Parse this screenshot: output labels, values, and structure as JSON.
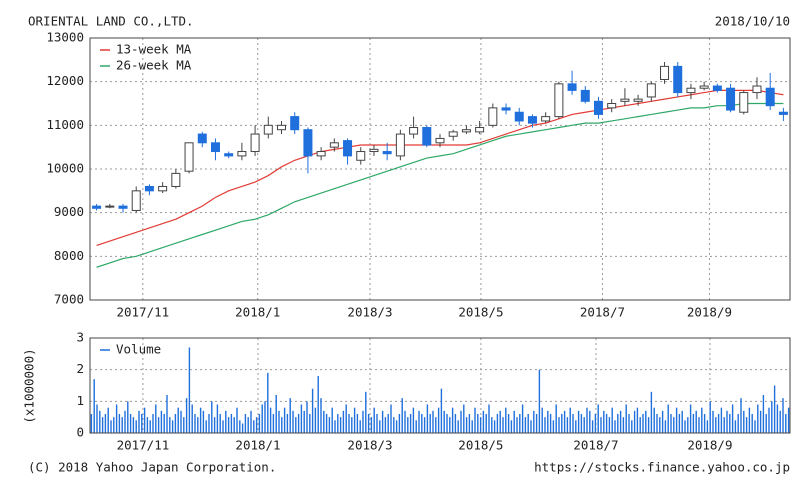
{
  "chart_data": [
    {
      "type": "candlestick",
      "title": "ORIENTAL LAND CO.,LTD.",
      "date": "2018/10/10",
      "categories": [
        null,
        null,
        null,
        null,
        null,
        null,
        null,
        null,
        null,
        null,
        null,
        null,
        null,
        null,
        null,
        null,
        null,
        null,
        null,
        null,
        null,
        null,
        null,
        null,
        null,
        null,
        null,
        null,
        null,
        null,
        null,
        null,
        null,
        null,
        null,
        null,
        null,
        null,
        null,
        null,
        null,
        null,
        null,
        null,
        null,
        null,
        null,
        null,
        null,
        null,
        null,
        null,
        null
      ],
      "open": [
        9150,
        9150,
        9150,
        9050,
        9600,
        9500,
        9600,
        9950,
        10800,
        10600,
        10350,
        10300,
        10400,
        10800,
        10900,
        11200,
        10900,
        10300,
        10500,
        10650,
        10200,
        10400,
        10400,
        10300,
        10800,
        10950,
        10600,
        10750,
        10850,
        10850,
        11000,
        11400,
        11300,
        11200,
        11100,
        11200,
        11950,
        11800,
        11550,
        11400,
        11550,
        11550,
        11650,
        12050,
        12350,
        11750,
        11850,
        11900,
        11850,
        11300,
        11750,
        11850,
        11300
      ],
      "high": [
        9200,
        9200,
        9200,
        9600,
        9650,
        9700,
        10000,
        10600,
        10850,
        10700,
        10400,
        10600,
        11000,
        11200,
        11100,
        11300,
        10950,
        10500,
        10700,
        10700,
        10500,
        10550,
        10600,
        10900,
        11200,
        11000,
        10800,
        10900,
        11000,
        11100,
        11500,
        11500,
        11400,
        11250,
        11300,
        12000,
        12250,
        11900,
        11650,
        11600,
        11850,
        11700,
        12000,
        12450,
        12450,
        11950,
        12000,
        11950,
        11950,
        11800,
        12100,
        12200,
        11400
      ],
      "low": [
        9050,
        9100,
        9000,
        9000,
        9400,
        9450,
        9550,
        9900,
        10500,
        10200,
        10250,
        10200,
        10300,
        10700,
        10800,
        10800,
        9900,
        10200,
        10400,
        10100,
        10100,
        10300,
        10200,
        10200,
        10700,
        10500,
        10500,
        10650,
        10800,
        10800,
        10950,
        11250,
        11000,
        10950,
        11050,
        11150,
        11700,
        11500,
        11150,
        11300,
        11450,
        11450,
        11550,
        11950,
        11650,
        11600,
        11800,
        11750,
        11300,
        11250,
        11600,
        11350,
        11100
      ],
      "close": [
        9100,
        9150,
        9100,
        9500,
        9500,
        9600,
        9900,
        10600,
        10600,
        10400,
        10300,
        10400,
        10800,
        11000,
        11000,
        10900,
        10300,
        10400,
        10600,
        10300,
        10400,
        10450,
        10350,
        10800,
        10950,
        10550,
        10700,
        10850,
        10900,
        10950,
        11400,
        11350,
        11100,
        11050,
        11200,
        11950,
        11800,
        11550,
        11250,
        11500,
        11600,
        11600,
        11950,
        12350,
        11750,
        11850,
        11900,
        11800,
        11350,
        11750,
        11900,
        11450,
        11250
      ],
      "up_color": "#ffffff",
      "down_color": "#1f6fdc",
      "series": [
        {
          "name": "13-week MA",
          "color": "#e23b35",
          "values": [
            8250,
            8350,
            8450,
            8550,
            8650,
            8750,
            8850,
            9000,
            9150,
            9350,
            9500,
            9600,
            9700,
            9850,
            10050,
            10200,
            10300,
            10400,
            10450,
            10500,
            10550,
            10550,
            10550,
            10550,
            10550,
            10550,
            10550,
            10550,
            10550,
            10600,
            10700,
            10800,
            10900,
            11000,
            11050,
            11150,
            11250,
            11300,
            11350,
            11400,
            11450,
            11500,
            11550,
            11600,
            11650,
            11700,
            11750,
            11800,
            11800,
            11800,
            11800,
            11750,
            11700
          ]
        },
        {
          "name": "26-week MA",
          "color": "#2ea868",
          "values": [
            7750,
            7850,
            7950,
            8000,
            8100,
            8200,
            8300,
            8400,
            8500,
            8600,
            8700,
            8800,
            8850,
            8950,
            9100,
            9250,
            9350,
            9450,
            9550,
            9650,
            9750,
            9850,
            9950,
            10050,
            10150,
            10250,
            10300,
            10350,
            10450,
            10550,
            10650,
            10750,
            10800,
            10850,
            10900,
            10950,
            11000,
            11050,
            11050,
            11100,
            11150,
            11200,
            11250,
            11300,
            11350,
            11400,
            11400,
            11450,
            11450,
            11500,
            11500,
            11500,
            11500
          ]
        }
      ],
      "ylim": [
        7000,
        13000
      ],
      "yticks": [
        7000,
        8000,
        9000,
        10000,
        11000,
        12000,
        13000
      ],
      "xticks": [
        {
          "value": 3.5,
          "label": "2017/11"
        },
        {
          "value": 12.2,
          "label": "2018/1"
        },
        {
          "value": 20.7,
          "label": "2018/3"
        },
        {
          "value": 29.1,
          "label": "2018/5"
        },
        {
          "value": 38.3,
          "label": "2018/7"
        },
        {
          "value": 46.4,
          "label": "2018/9"
        }
      ],
      "grid": true,
      "legend": "upper-left"
    },
    {
      "type": "bar",
      "y_label": "(x1000000)",
      "categories": [
        null,
        null,
        null,
        null,
        null,
        null,
        null,
        null,
        null,
        null,
        null,
        null,
        null,
        null,
        null,
        null,
        null,
        null,
        null,
        null,
        null,
        null,
        null,
        null,
        null,
        null,
        null,
        null,
        null,
        null,
        null,
        null,
        null,
        null,
        null,
        null,
        null,
        null,
        null,
        null,
        null,
        null,
        null,
        null,
        null,
        null,
        null,
        null,
        null,
        null,
        null,
        null,
        null,
        null,
        null,
        null,
        null,
        null,
        null,
        null,
        null,
        null,
        null,
        null,
        null,
        null,
        null,
        null,
        null,
        null,
        null,
        null,
        null,
        null,
        null,
        null,
        null,
        null,
        null,
        null,
        null,
        null,
        null,
        null,
        null,
        null,
        null,
        null,
        null,
        null,
        null,
        null,
        null,
        null,
        null,
        null,
        null,
        null,
        null,
        null,
        null,
        null,
        null,
        null,
        null,
        null,
        null,
        null,
        null,
        null,
        null,
        null,
        null,
        null,
        null,
        null,
        null,
        null,
        null,
        null,
        null,
        null,
        null,
        null,
        null,
        null,
        null,
        null,
        null,
        null,
        null,
        null,
        null,
        null,
        null,
        null,
        null,
        null,
        null,
        null,
        null,
        null,
        null,
        null,
        null,
        null,
        null,
        null,
        null,
        null,
        null,
        null,
        null,
        null,
        null,
        null,
        null,
        null,
        null,
        null,
        null,
        null,
        null,
        null,
        null,
        null,
        null,
        null,
        null,
        null,
        null,
        null,
        null,
        null,
        null,
        null,
        null,
        null,
        null,
        null,
        null,
        null,
        null,
        null,
        null,
        null,
        null,
        null,
        null,
        null,
        null,
        null,
        null,
        null,
        null,
        null,
        null,
        null,
        null,
        null,
        null,
        null,
        null,
        null,
        null,
        null,
        null,
        null,
        null,
        null,
        null,
        null,
        null,
        null,
        null,
        null,
        null,
        null,
        null,
        null,
        null,
        null,
        null,
        null,
        null,
        null,
        null,
        null,
        null,
        null,
        null,
        null,
        null,
        null,
        null,
        null,
        null,
        null,
        null,
        null,
        null,
        null,
        null,
        null,
        null,
        null,
        null,
        null,
        null,
        null
      ],
      "series": [
        {
          "name": "Volume",
          "color": "#1f6fdc",
          "values": [
            0.6,
            1.7,
            0.9,
            0.7,
            0.5,
            0.6,
            0.8,
            0.4,
            0.5,
            0.9,
            0.6,
            0.5,
            0.7,
            1.0,
            0.6,
            0.5,
            0.4,
            0.7,
            0.6,
            0.8,
            0.5,
            0.4,
            0.6,
            0.9,
            0.5,
            0.7,
            0.6,
            1.2,
            0.5,
            0.4,
            0.6,
            0.8,
            0.7,
            0.5,
            1.1,
            2.7,
            0.9,
            0.6,
            0.5,
            0.8,
            0.7,
            0.4,
            0.6,
            1.0,
            0.5,
            0.9,
            0.6,
            0.4,
            0.7,
            0.5,
            0.6,
            0.5,
            0.8,
            0.4,
            0.3,
            0.6,
            0.5,
            0.7,
            0.4,
            0.5,
            0.6,
            0.9,
            1.0,
            1.9,
            0.8,
            0.6,
            1.2,
            0.7,
            0.5,
            0.8,
            0.6,
            1.1,
            0.7,
            0.5,
            0.6,
            0.9,
            0.7,
            1.0,
            0.6,
            1.4,
            0.8,
            1.8,
            1.1,
            0.7,
            0.6,
            0.5,
            0.8,
            0.4,
            0.6,
            0.5,
            0.7,
            0.9,
            0.6,
            0.5,
            0.8,
            0.6,
            0.4,
            0.7,
            1.3,
            0.6,
            0.5,
            0.8,
            0.6,
            0.4,
            0.7,
            0.5,
            0.6,
            0.9,
            0.5,
            0.4,
            0.6,
            1.1,
            0.7,
            0.5,
            0.6,
            0.8,
            0.4,
            0.7,
            0.6,
            0.5,
            0.9,
            0.6,
            0.7,
            0.5,
            0.8,
            1.4,
            0.7,
            0.6,
            0.5,
            0.8,
            0.6,
            0.4,
            0.7,
            0.9,
            0.5,
            0.6,
            0.4,
            0.8,
            0.6,
            0.5,
            0.7,
            0.6,
            0.9,
            0.5,
            0.4,
            0.6,
            0.7,
            0.5,
            0.8,
            0.6,
            0.4,
            0.7,
            0.5,
            0.6,
            0.9,
            0.5,
            0.6,
            0.4,
            0.7,
            0.6,
            2.0,
            0.8,
            0.5,
            0.7,
            0.6,
            0.4,
            0.9,
            0.5,
            0.6,
            0.7,
            0.5,
            0.8,
            0.6,
            0.4,
            0.7,
            0.6,
            0.5,
            0.8,
            0.7,
            0.4,
            0.6,
            0.9,
            0.5,
            0.7,
            0.6,
            0.5,
            0.8,
            0.4,
            0.6,
            0.7,
            0.5,
            0.9,
            0.6,
            0.4,
            0.7,
            0.8,
            0.5,
            0.6,
            0.7,
            0.5,
            1.3,
            0.8,
            0.6,
            0.5,
            0.7,
            0.4,
            0.9,
            0.6,
            0.5,
            0.8,
            0.6,
            0.7,
            0.4,
            0.5,
            0.9,
            0.6,
            0.7,
            0.5,
            0.8,
            0.6,
            0.4,
            1.0,
            0.7,
            0.5,
            0.6,
            0.8,
            0.5,
            0.7,
            0.6,
            0.9,
            0.4,
            0.6,
            1.1,
            0.7,
            0.5,
            0.8,
            0.6,
            0.4,
            0.9,
            0.7,
            1.2,
            0.6,
            0.8,
            1.0,
            1.5,
            0.9,
            0.7,
            1.1,
            0.6,
            0.8
          ]
        }
      ],
      "ylim": [
        0,
        3
      ],
      "yticks": [
        0,
        1,
        2,
        3
      ],
      "xticks": [
        {
          "value": 18.4,
          "label": "2017/11"
        },
        {
          "value": 59.5,
          "label": "2018/1"
        },
        {
          "value": 99.5,
          "label": "2018/3"
        },
        {
          "value": 139.1,
          "label": "2018/5"
        },
        {
          "value": 180.2,
          "label": "2018/7"
        },
        {
          "value": 220.9,
          "label": "2018/9"
        }
      ],
      "grid": true,
      "legend": "upper-left"
    }
  ],
  "footer": {
    "copyright": "(C) 2018 Yahoo Japan Corporation.",
    "source": "https://stocks.finance.yahoo.co.jp"
  }
}
